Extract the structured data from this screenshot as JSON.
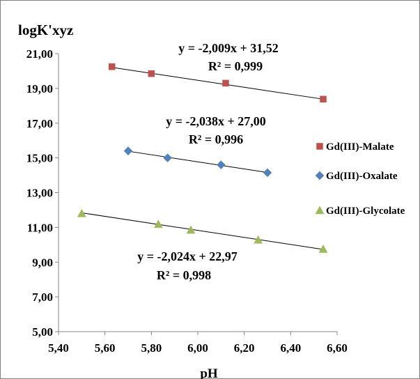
{
  "chart_data": {
    "type": "scatter",
    "ylabel": "logK'xyz",
    "xlabel": "pH",
    "xlim": [
      5.4,
      6.6
    ],
    "ylim": [
      5.0,
      21.0
    ],
    "x_ticks": [
      "5,40",
      "5,60",
      "5,80",
      "6,00",
      "6,20",
      "6,40",
      "6,60"
    ],
    "y_ticks": [
      "5,00",
      "7,00",
      "9,00",
      "11,00",
      "13,00",
      "15,00",
      "17,00",
      "19,00",
      "21,00"
    ],
    "grid": false,
    "legend_position": "right",
    "series": [
      {
        "name": "Gd(III)-Malate",
        "marker": "square",
        "color": "#c0504d",
        "x": [
          5.63,
          5.8,
          6.12,
          6.54
        ],
        "y": [
          20.25,
          19.85,
          19.3,
          18.38
        ],
        "fit": {
          "slope": -2.009,
          "intercept": 31.52
        },
        "equation": "y = -2,009x + 31,52",
        "r2": "R² = 0,999"
      },
      {
        "name": "Gd(III)-Oxalate",
        "marker": "diamond",
        "color": "#4f81bd",
        "x": [
          5.7,
          5.87,
          6.1,
          6.3
        ],
        "y": [
          15.4,
          15.0,
          14.6,
          14.15
        ],
        "fit": {
          "slope": -2.038,
          "intercept": 27.0
        },
        "equation": "y = -2,038x + 27,00",
        "r2": "R² = 0,996"
      },
      {
        "name": "Gd(III)-Glycolate",
        "marker": "triangle",
        "color": "#9bbb59",
        "x": [
          5.5,
          5.83,
          5.97,
          6.26,
          6.54
        ],
        "y": [
          11.8,
          11.18,
          10.85,
          10.28,
          9.75
        ],
        "fit": {
          "slope": -2.024,
          "intercept": 22.97
        },
        "equation": "y = -2,024x + 22,97",
        "r2": "R² = 0,998"
      }
    ]
  }
}
